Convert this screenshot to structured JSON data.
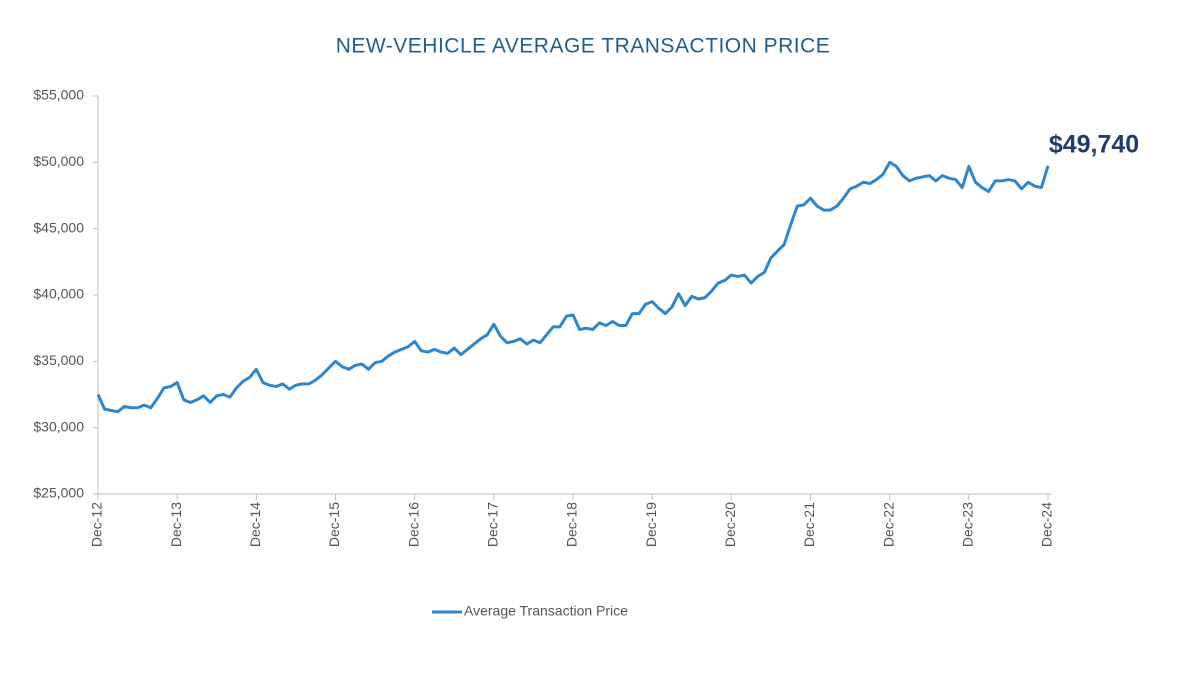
{
  "chart_data": {
    "type": "line",
    "title": "NEW-VEHICLE AVERAGE TRANSACTION PRICE",
    "categories": [
      "Dec-12",
      null,
      null,
      null,
      null,
      null,
      null,
      null,
      null,
      null,
      null,
      null,
      "Dec-13",
      null,
      null,
      null,
      null,
      null,
      null,
      null,
      null,
      null,
      null,
      null,
      "Dec-14",
      null,
      null,
      null,
      null,
      null,
      null,
      null,
      null,
      null,
      null,
      null,
      "Dec-15",
      null,
      null,
      null,
      null,
      null,
      null,
      null,
      null,
      null,
      null,
      null,
      "Dec-16",
      null,
      null,
      null,
      null,
      null,
      null,
      null,
      null,
      null,
      null,
      null,
      "Dec-17",
      null,
      null,
      null,
      null,
      null,
      null,
      null,
      null,
      null,
      null,
      null,
      "Dec-18",
      null,
      null,
      null,
      null,
      null,
      null,
      null,
      null,
      null,
      null,
      null,
      "Dec-19",
      null,
      null,
      null,
      null,
      null,
      null,
      null,
      null,
      null,
      null,
      null,
      "Dec-20",
      null,
      null,
      null,
      null,
      null,
      null,
      null,
      null,
      null,
      null,
      null,
      "Dec-21",
      null,
      null,
      null,
      null,
      null,
      null,
      null,
      null,
      null,
      null,
      null,
      "Dec-22",
      null,
      null,
      null,
      null,
      null,
      null,
      null,
      null,
      null,
      null,
      null,
      "Dec-23",
      null,
      null,
      null,
      null,
      null,
      null,
      null,
      null,
      null,
      null,
      null,
      "Dec-24"
    ],
    "series": [
      {
        "name": "Average Transaction Price",
        "color": "#2e86cc",
        "values": [
          32500,
          31400,
          31300,
          31200,
          31600,
          31500,
          31500,
          31700,
          31500,
          32200,
          33000,
          33100,
          33400,
          32100,
          31900,
          32100,
          32400,
          31900,
          32400,
          32500,
          32300,
          33000,
          33500,
          33800,
          34400,
          33400,
          33200,
          33100,
          33300,
          32900,
          33200,
          33300,
          33300,
          33600,
          34000,
          34500,
          35000,
          34600,
          34400,
          34700,
          34800,
          34400,
          34900,
          35000,
          35400,
          35700,
          35900,
          36100,
          36500,
          35800,
          35700,
          35900,
          35700,
          35600,
          36000,
          35500,
          35900,
          36300,
          36700,
          37000,
          37800,
          36900,
          36400,
          36500,
          36700,
          36300,
          36600,
          36400,
          37000,
          37600,
          37600,
          38400,
          38500,
          37400,
          37500,
          37400,
          37900,
          37700,
          38000,
          37700,
          37700,
          38600,
          38600,
          39300,
          39500,
          39000,
          38600,
          39100,
          40100,
          39200,
          39900,
          39700,
          39800,
          40300,
          40900,
          41100,
          41500,
          41400,
          41500,
          40900,
          41400,
          41700,
          42800,
          43300,
          43800,
          45300,
          46700,
          46800,
          47300,
          46700,
          46400,
          46400,
          46700,
          47300,
          48000,
          48200,
          48500,
          48400,
          48700,
          49100,
          50000,
          49700,
          49000,
          48600,
          48800,
          48900,
          49000,
          48600,
          49000,
          48800,
          48700,
          48100,
          49700,
          48500,
          48100,
          47800,
          48600,
          48600,
          48700,
          48600,
          48000,
          48500,
          48200,
          48100,
          49740
        ],
        "value_labels": [
          null,
          null,
          null,
          null,
          null,
          null,
          null,
          null,
          null,
          null,
          null,
          null,
          null,
          null,
          null,
          null,
          null,
          null,
          null,
          null,
          null,
          null,
          null,
          null,
          null,
          null,
          null,
          null,
          null,
          null,
          null,
          null,
          null,
          null,
          null,
          null,
          null,
          null,
          null,
          null,
          null,
          null,
          null,
          null,
          null,
          null,
          null,
          null,
          null,
          null,
          null,
          null,
          null,
          null,
          null,
          null,
          null,
          null,
          null,
          null,
          null,
          null,
          null,
          null,
          null,
          null,
          null,
          null,
          null,
          null,
          null,
          null,
          null,
          null,
          null,
          null,
          null,
          null,
          null,
          null,
          null,
          null,
          null,
          null,
          null,
          null,
          null,
          null,
          null,
          null,
          null,
          null,
          null,
          null,
          null,
          null,
          null,
          null,
          null,
          null,
          null,
          null,
          null,
          null,
          null,
          null,
          null,
          null,
          null,
          null,
          null,
          null,
          null,
          null,
          null,
          null,
          null,
          null,
          null,
          null,
          null,
          null,
          null,
          null,
          null,
          null,
          null,
          null,
          null,
          null,
          null,
          null,
          null,
          null,
          null,
          null,
          null,
          null,
          null,
          null,
          null,
          null,
          null,
          null,
          "$49,740"
        ]
      }
    ],
    "ylim": [
      25000,
      55000
    ],
    "yticks": [
      {
        "value": 25000,
        "label": "$25,000"
      },
      {
        "value": 30000,
        "label": "$30,000"
      },
      {
        "value": 35000,
        "label": "$35,000"
      },
      {
        "value": 40000,
        "label": "$40,000"
      },
      {
        "value": 45000,
        "label": "$45,000"
      },
      {
        "value": 50000,
        "label": "$50,000"
      },
      {
        "value": 55000,
        "label": "$55,000"
      }
    ],
    "grid": false,
    "legend": "bottom"
  }
}
